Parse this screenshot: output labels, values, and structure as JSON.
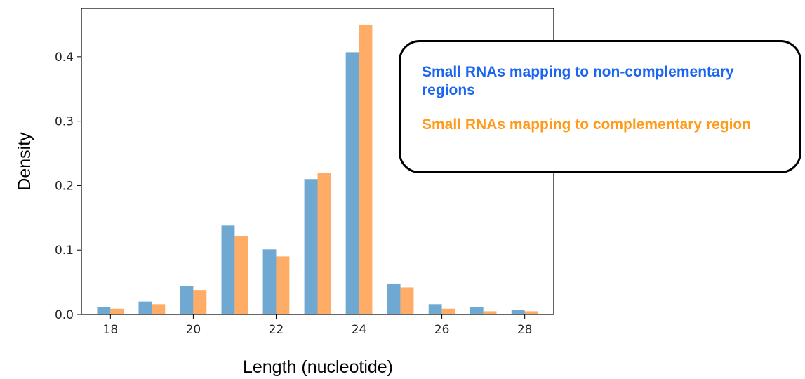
{
  "chart_data": {
    "type": "bar",
    "title": "",
    "xlabel": "Length (nucleotide)",
    "ylabel": "Density",
    "x": [
      18,
      19,
      20,
      21,
      22,
      23,
      24,
      25,
      26,
      27,
      28
    ],
    "xticks": [
      "18",
      "20",
      "22",
      "24",
      "26",
      "28"
    ],
    "xlim": [
      17.3,
      28.7
    ],
    "yticks": [
      "0.0",
      "0.1",
      "0.2",
      "0.3",
      "0.4"
    ],
    "ylim": [
      0,
      0.475
    ],
    "series": [
      {
        "name": "Small RNAs mapping to non-complementary regions",
        "color": "#6fa8d0",
        "values": [
          0.011,
          0.02,
          0.044,
          0.138,
          0.101,
          0.21,
          0.407,
          0.048,
          0.016,
          0.011,
          0.007
        ]
      },
      {
        "name": "Small RNAs mapping to complementary region",
        "color": "#ffad66",
        "values": [
          0.009,
          0.016,
          0.038,
          0.122,
          0.09,
          0.22,
          0.45,
          0.042,
          0.009,
          0.005,
          0.005
        ]
      }
    ],
    "legend_position": "upper-right",
    "grid": false
  },
  "legend": {
    "item1": "Small RNAs mapping to non-complementary regions",
    "item1_color": "#1a66f2",
    "item2": "Small RNAs mapping to complementary region",
    "item2_color": "#ff9a1a"
  }
}
